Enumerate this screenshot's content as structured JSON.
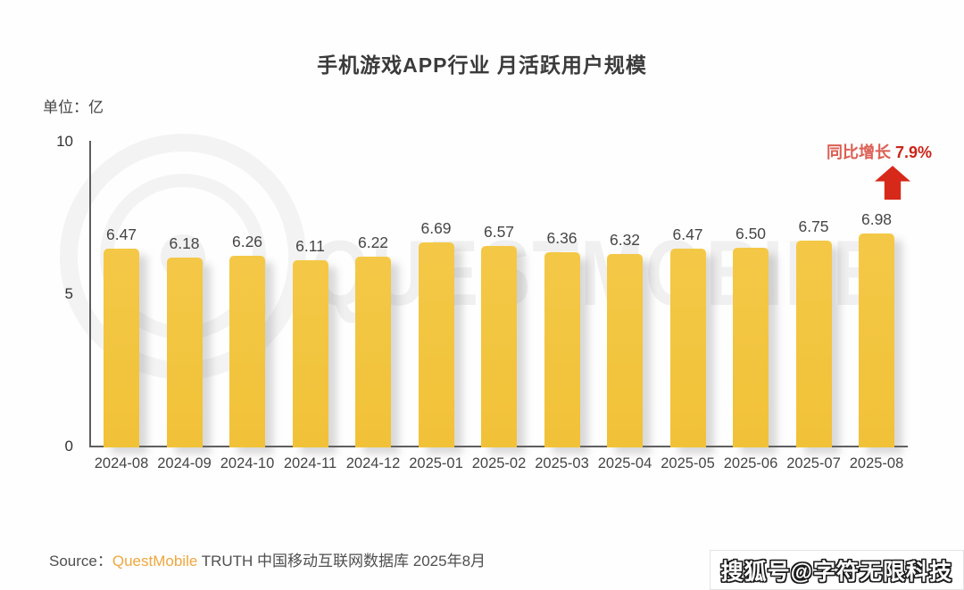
{
  "chart_data": {
    "type": "bar",
    "title": "手机游戏APP行业 月活跃用户规模",
    "ylabel": "单位：亿",
    "categories": [
      "2024-08",
      "2024-09",
      "2024-10",
      "2024-11",
      "2024-12",
      "2025-01",
      "2025-02",
      "2025-03",
      "2025-04",
      "2025-05",
      "2025-06",
      "2025-07",
      "2025-08"
    ],
    "values": [
      6.47,
      6.18,
      6.26,
      6.11,
      6.22,
      6.69,
      6.57,
      6.36,
      6.32,
      6.47,
      6.5,
      6.75,
      6.98
    ],
    "value_labels": [
      "6.47",
      "6.18",
      "6.26",
      "6.11",
      "6.22",
      "6.69",
      "6.57",
      "6.36",
      "6.32",
      "6.47",
      "6.50",
      "6.75",
      "6.98"
    ],
    "ylim": [
      0,
      10
    ],
    "yticks": [
      0,
      5,
      10
    ],
    "ytick_labels": [
      "10",
      "5",
      "0"
    ],
    "grid": false,
    "legend": "none",
    "bar_color": "#F2C33D"
  },
  "annotation": {
    "label": "同比增长",
    "value": "7.9%",
    "label_color": "#DC5F53",
    "value_color": "#CB2417",
    "arrow_icon": "up-arrow",
    "arrow_color": "#D7291A"
  },
  "source": {
    "prefix": "Source：",
    "brand": "QuestMobile",
    "rest": " TRUTH 中国移动互联网数据库 2025年8月",
    "brand_color": "#F0A73E"
  },
  "watermarks": {
    "logo_text": "QUESTMOBILE",
    "corner_badge": "搜狐号@字符无限科技"
  }
}
